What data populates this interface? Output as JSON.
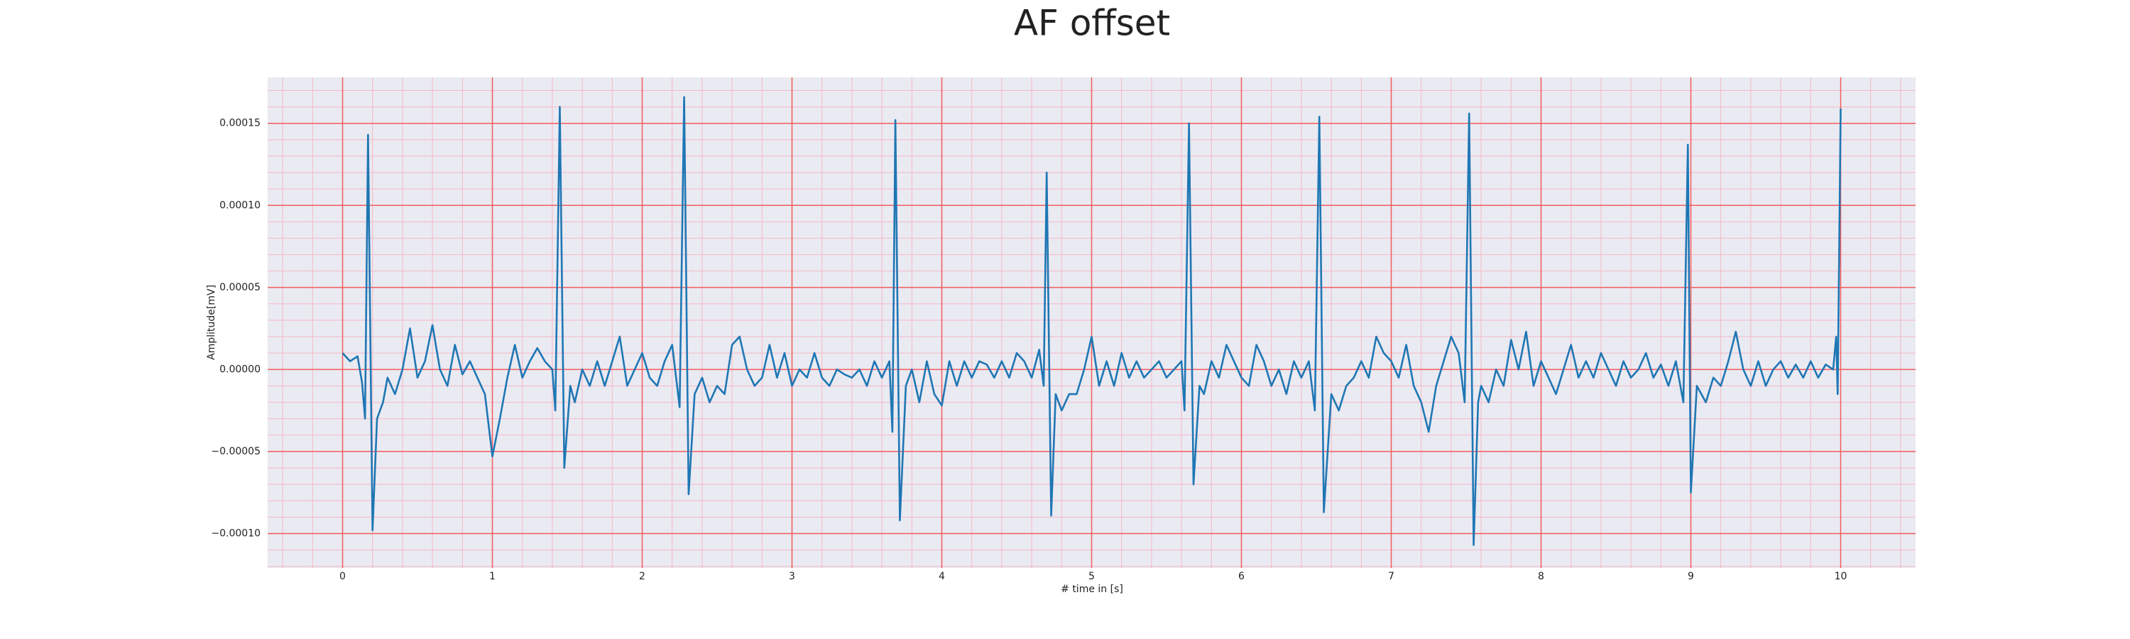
{
  "chart_data": {
    "type": "line",
    "title": "AF offset",
    "xlabel": "# time in [s]",
    "ylabel": "Amplitude[mV]",
    "color": "#1f77b4",
    "grid": true,
    "grid_color": "#f25c5c",
    "minor_grid": true,
    "minor_grid_color": "#f4b8c4",
    "background": "#eaeaf2",
    "xlim": [
      -0.5,
      10.5
    ],
    "ylim": [
      -0.000121,
      0.000178
    ],
    "xticks": [
      0,
      1,
      2,
      3,
      4,
      5,
      6,
      7,
      8,
      9,
      10
    ],
    "yticks": [
      {
        "value": -0.0001,
        "label": "−0.00010"
      },
      {
        "value": -5e-05,
        "label": "−0.00005"
      },
      {
        "value": 0,
        "label": "0.00000"
      },
      {
        "value": 5e-05,
        "label": "0.00005"
      },
      {
        "value": 0.0001,
        "label": "0.00010"
      },
      {
        "value": 0.00015,
        "label": "0.00015"
      }
    ],
    "x": [
      0.0,
      0.05,
      0.1,
      0.13,
      0.15,
      0.17,
      0.2,
      0.23,
      0.27,
      0.3,
      0.35,
      0.4,
      0.45,
      0.5,
      0.55,
      0.6,
      0.65,
      0.7,
      0.75,
      0.8,
      0.85,
      0.9,
      0.95,
      1.0,
      1.05,
      1.1,
      1.15,
      1.2,
      1.25,
      1.3,
      1.35,
      1.4,
      1.42,
      1.45,
      1.48,
      1.52,
      1.55,
      1.6,
      1.65,
      1.7,
      1.75,
      1.8,
      1.85,
      1.9,
      1.95,
      2.0,
      2.05,
      2.1,
      2.15,
      2.2,
      2.25,
      2.28,
      2.31,
      2.35,
      2.4,
      2.45,
      2.5,
      2.55,
      2.6,
      2.65,
      2.7,
      2.75,
      2.8,
      2.85,
      2.9,
      2.95,
      3.0,
      3.05,
      3.1,
      3.15,
      3.2,
      3.25,
      3.3,
      3.35,
      3.4,
      3.45,
      3.5,
      3.55,
      3.6,
      3.65,
      3.67,
      3.69,
      3.72,
      3.76,
      3.8,
      3.85,
      3.9,
      3.95,
      4.0,
      4.05,
      4.1,
      4.15,
      4.2,
      4.25,
      4.3,
      4.35,
      4.4,
      4.45,
      4.5,
      4.55,
      4.6,
      4.65,
      4.68,
      4.7,
      4.73,
      4.76,
      4.8,
      4.85,
      4.9,
      4.95,
      5.0,
      5.05,
      5.1,
      5.15,
      5.2,
      5.25,
      5.3,
      5.35,
      5.4,
      5.45,
      5.5,
      5.55,
      5.6,
      5.62,
      5.65,
      5.68,
      5.72,
      5.75,
      5.8,
      5.85,
      5.9,
      5.95,
      6.0,
      6.05,
      6.1,
      6.15,
      6.2,
      6.25,
      6.3,
      6.35,
      6.4,
      6.45,
      6.49,
      6.52,
      6.55,
      6.6,
      6.65,
      6.7,
      6.75,
      6.8,
      6.85,
      6.9,
      6.95,
      7.0,
      7.05,
      7.1,
      7.15,
      7.2,
      7.25,
      7.3,
      7.35,
      7.4,
      7.45,
      7.49,
      7.52,
      7.55,
      7.58,
      7.6,
      7.65,
      7.7,
      7.75,
      7.8,
      7.85,
      7.9,
      7.95,
      8.0,
      8.05,
      8.1,
      8.15,
      8.2,
      8.25,
      8.3,
      8.35,
      8.4,
      8.45,
      8.5,
      8.55,
      8.6,
      8.65,
      8.7,
      8.75,
      8.8,
      8.85,
      8.9,
      8.95,
      8.98,
      9.0,
      9.04,
      9.1,
      9.15,
      9.2,
      9.25,
      9.3,
      9.35,
      9.4,
      9.45,
      9.5,
      9.55,
      9.6,
      9.65,
      9.7,
      9.75,
      9.8,
      9.85,
      9.9,
      9.95,
      9.97,
      9.98,
      10.0
    ],
    "values": [
      1e-05,
      5e-06,
      8e-06,
      -8e-06,
      -3e-05,
      0.000143,
      -9.8e-05,
      -3e-05,
      -2e-05,
      -5e-06,
      -1.5e-05,
      0,
      2.5e-05,
      -5e-06,
      5e-06,
      2.7e-05,
      0,
      -1e-05,
      1.5e-05,
      -3e-06,
      5e-06,
      -5e-06,
      -1.5e-05,
      -5.3e-05,
      -3e-05,
      -5e-06,
      1.5e-05,
      -5e-06,
      5e-06,
      1.3e-05,
      5e-06,
      0,
      -2.5e-05,
      0.00016,
      -6e-05,
      -1e-05,
      -2e-05,
      0,
      -1e-05,
      5e-06,
      -1e-05,
      5e-06,
      2e-05,
      -1e-05,
      0,
      1e-05,
      -5e-06,
      -1e-05,
      5e-06,
      1.5e-05,
      -2.3e-05,
      0.000166,
      -7.6e-05,
      -1.5e-05,
      -5e-06,
      -2e-05,
      -1e-05,
      -1.5e-05,
      1.5e-05,
      2e-05,
      0,
      -1e-05,
      -5e-06,
      1.5e-05,
      -5e-06,
      1e-05,
      -1e-05,
      0,
      -5e-06,
      1e-05,
      -5e-06,
      -1e-05,
      0,
      -3e-06,
      -5e-06,
      0,
      -1e-05,
      5e-06,
      -5e-06,
      5e-06,
      -3.8e-05,
      0.000152,
      -9.2e-05,
      -1e-05,
      0,
      -2e-05,
      5e-06,
      -1.5e-05,
      -2.2e-05,
      5e-06,
      -1e-05,
      5e-06,
      -5e-06,
      5e-06,
      3e-06,
      -5e-06,
      5e-06,
      -5e-06,
      1e-05,
      5e-06,
      -5e-06,
      1.2e-05,
      -1e-05,
      0.00012,
      -8.9e-05,
      -1.5e-05,
      -2.5e-05,
      -1.5e-05,
      -1.5e-05,
      0,
      2e-05,
      -1e-05,
      5e-06,
      -1e-05,
      1e-05,
      -5e-06,
      5e-06,
      -5e-06,
      0,
      5e-06,
      -5e-06,
      0,
      5e-06,
      -2.5e-05,
      0.00015,
      -7e-05,
      -1e-05,
      -1.5e-05,
      5e-06,
      -5e-06,
      1.5e-05,
      5e-06,
      -5e-06,
      -1e-05,
      1.5e-05,
      5e-06,
      -1e-05,
      0,
      -1.5e-05,
      5e-06,
      -5e-06,
      5e-06,
      -2.5e-05,
      0.000154,
      -8.7e-05,
      -1.5e-05,
      -2.5e-05,
      -1e-05,
      -5e-06,
      5e-06,
      -5e-06,
      2e-05,
      1e-05,
      5e-06,
      -5e-06,
      1.5e-05,
      -1e-05,
      -2e-05,
      -3.8e-05,
      -1e-05,
      5e-06,
      2e-05,
      1e-05,
      -2e-05,
      0.000156,
      -0.000107,
      -2e-05,
      -1e-05,
      -2e-05,
      0,
      -1e-05,
      1.8e-05,
      0,
      2.3e-05,
      -1e-05,
      5e-06,
      -5e-06,
      -1.5e-05,
      0,
      1.5e-05,
      -5e-06,
      5e-06,
      -5e-06,
      1e-05,
      0,
      -1e-05,
      5e-06,
      -5e-06,
      0,
      1e-05,
      -5e-06,
      3e-06,
      -1e-05,
      5e-06,
      -2e-05,
      0.000137,
      -7.5e-05,
      -1e-05,
      -2e-05,
      -5e-06,
      -1e-05,
      5e-06,
      2.3e-05,
      0,
      -1e-05,
      5e-06,
      -1e-05,
      0,
      5e-06,
      -5e-06,
      3e-06,
      -5e-06,
      5e-06,
      -5e-06,
      3e-06,
      0,
      2e-05,
      -1.5e-05,
      0.000159
    ]
  }
}
